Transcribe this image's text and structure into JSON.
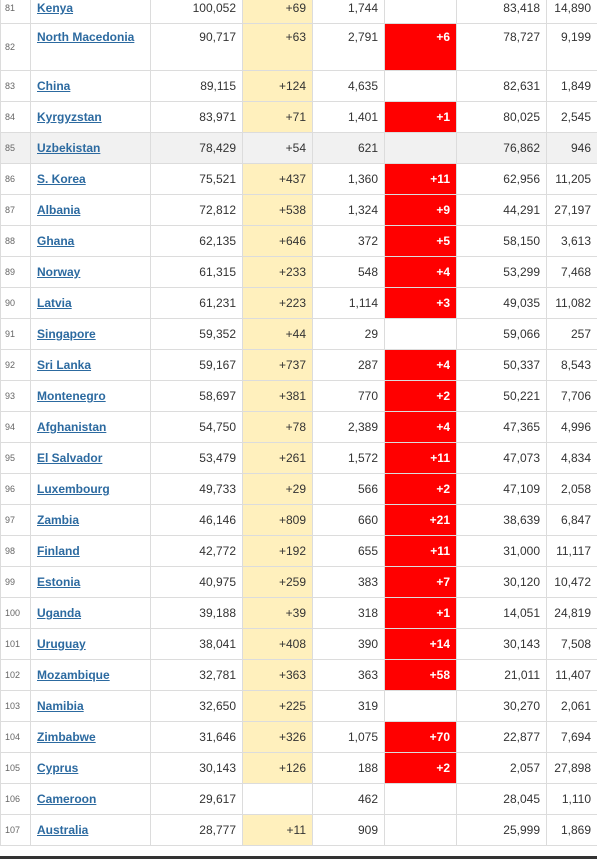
{
  "rows": [
    {
      "rank": "81",
      "country": "Kenya",
      "total_cases": "100,052",
      "new_cases": "+69",
      "total_deaths": "1,744",
      "new_deaths": "",
      "recovered": "83,418",
      "active": "14,890"
    },
    {
      "rank": "82",
      "country": "North Macedonia",
      "total_cases": "90,717",
      "new_cases": "+63",
      "total_deaths": "2,791",
      "new_deaths": "+6",
      "recovered": "78,727",
      "active": "9,199"
    },
    {
      "rank": "83",
      "country": "China",
      "total_cases": "89,115",
      "new_cases": "+124",
      "total_deaths": "4,635",
      "new_deaths": "",
      "recovered": "82,631",
      "active": "1,849"
    },
    {
      "rank": "84",
      "country": "Kyrgyzstan",
      "total_cases": "83,971",
      "new_cases": "+71",
      "total_deaths": "1,401",
      "new_deaths": "+1",
      "recovered": "80,025",
      "active": "2,545"
    },
    {
      "rank": "85",
      "country": "Uzbekistan",
      "total_cases": "78,429",
      "new_cases": "+54",
      "total_deaths": "621",
      "new_deaths": "",
      "recovered": "76,862",
      "active": "946"
    },
    {
      "rank": "86",
      "country": "S. Korea",
      "total_cases": "75,521",
      "new_cases": "+437",
      "total_deaths": "1,360",
      "new_deaths": "+11",
      "recovered": "62,956",
      "active": "11,205"
    },
    {
      "rank": "87",
      "country": "Albania",
      "total_cases": "72,812",
      "new_cases": "+538",
      "total_deaths": "1,324",
      "new_deaths": "+9",
      "recovered": "44,291",
      "active": "27,197"
    },
    {
      "rank": "88",
      "country": "Ghana",
      "total_cases": "62,135",
      "new_cases": "+646",
      "total_deaths": "372",
      "new_deaths": "+5",
      "recovered": "58,150",
      "active": "3,613"
    },
    {
      "rank": "89",
      "country": "Norway",
      "total_cases": "61,315",
      "new_cases": "+233",
      "total_deaths": "548",
      "new_deaths": "+4",
      "recovered": "53,299",
      "active": "7,468"
    },
    {
      "rank": "90",
      "country": "Latvia",
      "total_cases": "61,231",
      "new_cases": "+223",
      "total_deaths": "1,114",
      "new_deaths": "+3",
      "recovered": "49,035",
      "active": "11,082"
    },
    {
      "rank": "91",
      "country": "Singapore",
      "total_cases": "59,352",
      "new_cases": "+44",
      "total_deaths": "29",
      "new_deaths": "",
      "recovered": "59,066",
      "active": "257"
    },
    {
      "rank": "92",
      "country": "Sri Lanka",
      "total_cases": "59,167",
      "new_cases": "+737",
      "total_deaths": "287",
      "new_deaths": "+4",
      "recovered": "50,337",
      "active": "8,543"
    },
    {
      "rank": "93",
      "country": "Montenegro",
      "total_cases": "58,697",
      "new_cases": "+381",
      "total_deaths": "770",
      "new_deaths": "+2",
      "recovered": "50,221",
      "active": "7,706"
    },
    {
      "rank": "94",
      "country": "Afghanistan",
      "total_cases": "54,750",
      "new_cases": "+78",
      "total_deaths": "2,389",
      "new_deaths": "+4",
      "recovered": "47,365",
      "active": "4,996"
    },
    {
      "rank": "95",
      "country": "El Salvador",
      "total_cases": "53,479",
      "new_cases": "+261",
      "total_deaths": "1,572",
      "new_deaths": "+11",
      "recovered": "47,073",
      "active": "4,834"
    },
    {
      "rank": "96",
      "country": "Luxembourg",
      "total_cases": "49,733",
      "new_cases": "+29",
      "total_deaths": "566",
      "new_deaths": "+2",
      "recovered": "47,109",
      "active": "2,058"
    },
    {
      "rank": "97",
      "country": "Zambia",
      "total_cases": "46,146",
      "new_cases": "+809",
      "total_deaths": "660",
      "new_deaths": "+21",
      "recovered": "38,639",
      "active": "6,847"
    },
    {
      "rank": "98",
      "country": "Finland",
      "total_cases": "42,772",
      "new_cases": "+192",
      "total_deaths": "655",
      "new_deaths": "+11",
      "recovered": "31,000",
      "active": "11,117"
    },
    {
      "rank": "99",
      "country": "Estonia",
      "total_cases": "40,975",
      "new_cases": "+259",
      "total_deaths": "383",
      "new_deaths": "+7",
      "recovered": "30,120",
      "active": "10,472"
    },
    {
      "rank": "100",
      "country": "Uganda",
      "total_cases": "39,188",
      "new_cases": "+39",
      "total_deaths": "318",
      "new_deaths": "+1",
      "recovered": "14,051",
      "active": "24,819"
    },
    {
      "rank": "101",
      "country": "Uruguay",
      "total_cases": "38,041",
      "new_cases": "+408",
      "total_deaths": "390",
      "new_deaths": "+14",
      "recovered": "30,143",
      "active": "7,508"
    },
    {
      "rank": "102",
      "country": "Mozambique",
      "total_cases": "32,781",
      "new_cases": "+363",
      "total_deaths": "363",
      "new_deaths": "+58",
      "recovered": "21,011",
      "active": "11,407"
    },
    {
      "rank": "103",
      "country": "Namibia",
      "total_cases": "32,650",
      "new_cases": "+225",
      "total_deaths": "319",
      "new_deaths": "",
      "recovered": "30,270",
      "active": "2,061"
    },
    {
      "rank": "104",
      "country": "Zimbabwe",
      "total_cases": "31,646",
      "new_cases": "+326",
      "total_deaths": "1,075",
      "new_deaths": "+70",
      "recovered": "22,877",
      "active": "7,694"
    },
    {
      "rank": "105",
      "country": "Cyprus",
      "total_cases": "30,143",
      "new_cases": "+126",
      "total_deaths": "188",
      "new_deaths": "+2",
      "recovered": "2,057",
      "active": "27,898"
    },
    {
      "rank": "106",
      "country": "Cameroon",
      "total_cases": "29,617",
      "new_cases": "",
      "total_deaths": "462",
      "new_deaths": "",
      "recovered": "28,045",
      "active": "1,110"
    },
    {
      "rank": "107",
      "country": "Australia",
      "total_cases": "28,777",
      "new_cases": "+11",
      "total_deaths": "909",
      "new_deaths": "",
      "recovered": "25,999",
      "active": "1,869"
    }
  ],
  "colors": {
    "new_cases_bg": "#fff0bd",
    "new_deaths_bg": "#ff0000",
    "link": "#2c6aa0",
    "highlight_row": "#f1f1f1"
  }
}
